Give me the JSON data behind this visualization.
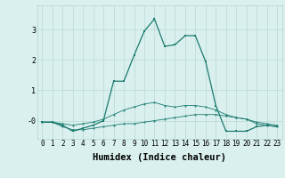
{
  "xlabel": "Humidex (Indice chaleur)",
  "x": [
    0,
    1,
    2,
    3,
    4,
    5,
    6,
    7,
    8,
    9,
    10,
    11,
    12,
    13,
    14,
    15,
    16,
    17,
    18,
    19,
    20,
    21,
    22,
    23
  ],
  "y_main": [
    -0.05,
    -0.05,
    -0.15,
    -0.35,
    -0.25,
    -0.15,
    0.0,
    1.3,
    1.3,
    2.15,
    2.95,
    3.35,
    2.45,
    2.5,
    2.8,
    2.8,
    1.95,
    0.5,
    -0.35,
    -0.35,
    -0.35,
    -0.2,
    -0.15,
    -0.2
  ],
  "y_low": [
    -0.05,
    -0.05,
    -0.2,
    -0.3,
    -0.3,
    -0.25,
    -0.2,
    -0.15,
    -0.1,
    -0.1,
    -0.05,
    0.0,
    0.05,
    0.1,
    0.15,
    0.2,
    0.2,
    0.2,
    0.15,
    0.1,
    0.05,
    -0.1,
    -0.15,
    -0.2
  ],
  "y_high": [
    -0.05,
    -0.05,
    -0.1,
    -0.15,
    -0.1,
    -0.05,
    0.05,
    0.2,
    0.35,
    0.45,
    0.55,
    0.6,
    0.5,
    0.45,
    0.5,
    0.5,
    0.45,
    0.35,
    0.2,
    0.1,
    0.05,
    -0.05,
    -0.1,
    -0.15
  ],
  "line_color": "#1a7a6e",
  "bg_color": "#d9f0ee",
  "grid_color": "#b8d8d5",
  "tick_label_fontsize": 5.5,
  "xlabel_fontsize": 7.5,
  "ylim": [
    -0.6,
    3.8
  ],
  "yticks": [
    0,
    1,
    2,
    3
  ],
  "ytick_labels": [
    "-0",
    "1",
    "2",
    "3"
  ]
}
